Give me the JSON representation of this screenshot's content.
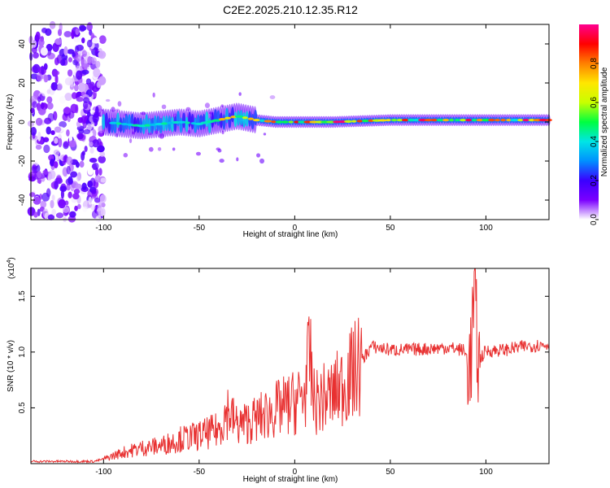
{
  "title": "C2E2.2025.210.12.35.R12",
  "chart_data": [
    {
      "type": "heatmap",
      "xlabel": "Height of straight line (km)",
      "ylabel": "Frequency (Hz)",
      "xlim": [
        -138,
        133
      ],
      "ylim": [
        -50,
        50
      ],
      "xticks": [
        -100,
        -50,
        0,
        50,
        100
      ],
      "yticks": [
        -40,
        -20,
        0,
        20,
        40
      ],
      "colorbar": {
        "label": "Normalized spectral amplitude",
        "range": [
          0.0,
          1.0
        ],
        "ticks": [
          "0.0",
          "0.2",
          "0.4",
          "0.6",
          "0.8"
        ],
        "colors": [
          "#ffffff",
          "#7b00ff",
          "#3a00ff",
          "#0090ff",
          "#00e5e5",
          "#00ff40",
          "#c8ff00",
          "#ffe600",
          "#ff8000",
          "#ff0000",
          "#ff0090"
        ]
      },
      "ridge": {
        "x": [
          -100,
          -80,
          -60,
          -50,
          -40,
          -30,
          -20,
          -10,
          0,
          20,
          50,
          80,
          90,
          100,
          120,
          133
        ],
        "y": [
          0,
          -2,
          0,
          -1,
          1,
          3,
          1,
          0,
          0,
          0,
          1,
          1,
          1,
          1,
          1,
          1
        ]
      }
    },
    {
      "type": "line",
      "xlabel": "Height of straight line (km)",
      "ylabel": "SNR (10 * v/v)",
      "ylabel_multiplier": "(x10",
      "ylabel_exponent": "4",
      "xlim": [
        -138,
        133
      ],
      "ylim": [
        0,
        1.75
      ],
      "xticks": [
        -100,
        -50,
        0,
        50,
        100
      ],
      "yticks": [
        0.5,
        1.0,
        1.5
      ],
      "color": "#e83030",
      "series": [
        {
          "x": [
            -138,
            -120,
            -105,
            -100,
            -90,
            -80,
            -70,
            -60,
            -50,
            -40,
            -35,
            -30,
            -20,
            -10,
            0,
            5,
            8,
            10,
            20,
            30,
            35,
            40,
            50,
            60,
            70,
            80,
            88,
            92,
            94,
            96,
            100,
            110,
            120,
            133
          ],
          "y": [
            0.02,
            0.02,
            0.02,
            0.04,
            0.1,
            0.14,
            0.16,
            0.22,
            0.25,
            0.3,
            0.48,
            0.34,
            0.4,
            0.48,
            0.55,
            0.62,
            0.95,
            0.55,
            0.62,
            0.8,
            0.92,
            1.05,
            1.02,
            1.02,
            1.03,
            1.04,
            1.02,
            0.9,
            1.55,
            0.92,
            1.01,
            1.02,
            1.05,
            1.07
          ]
        }
      ]
    }
  ]
}
